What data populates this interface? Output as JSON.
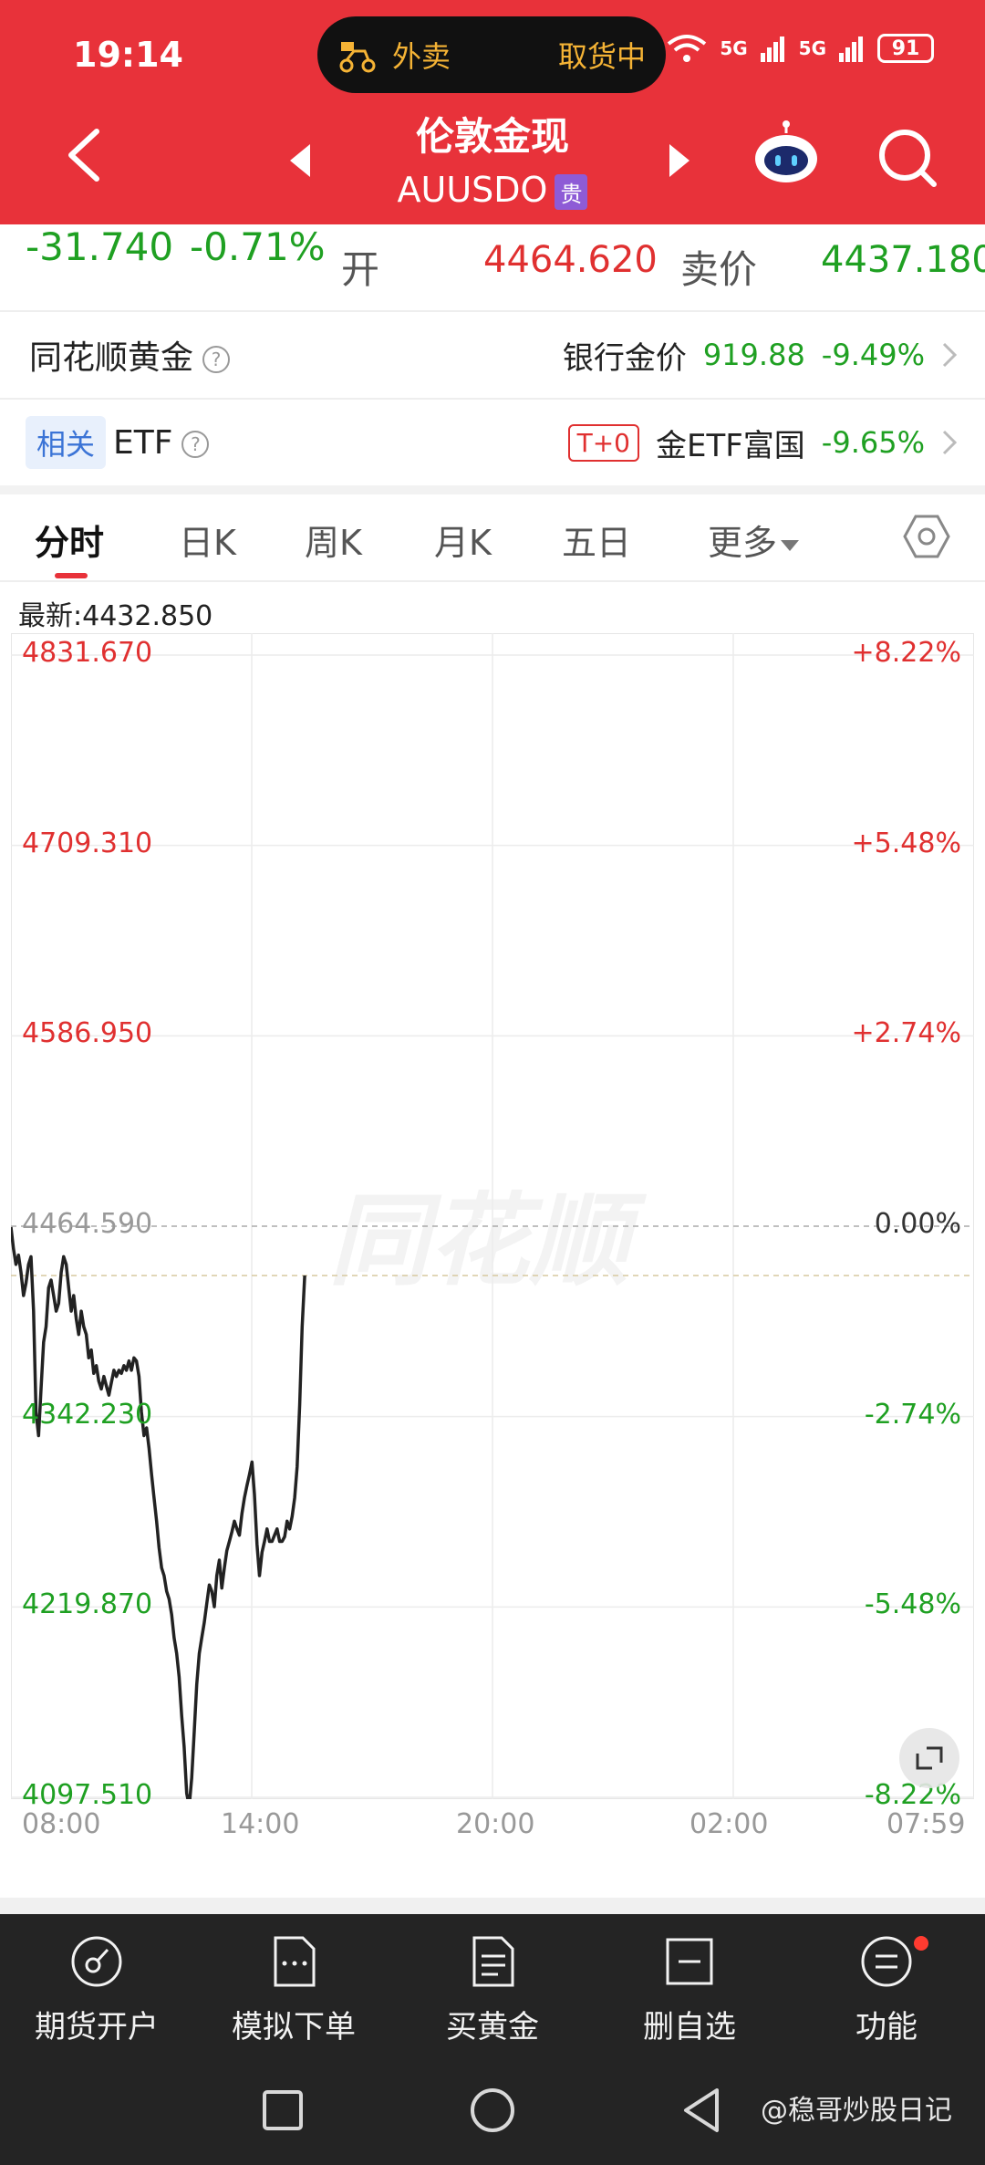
{
  "status_bar": {
    "time": "19:14",
    "pill_left": "外卖",
    "pill_right": "取货中",
    "signal1": "5G",
    "signal2": "5G",
    "battery": "91"
  },
  "header": {
    "title": "伦敦金现",
    "symbol": "AUUSDO",
    "symbol_badge": "贵"
  },
  "quote": {
    "change": "-31.740",
    "change_pct": "-0.71%",
    "open_label": "开",
    "open_value": "4464.620",
    "sell_label": "卖价",
    "sell_value": "4437.180"
  },
  "gold_row": {
    "label": "同花顺黄金",
    "help": "?",
    "bank_label": "银行金价",
    "bank_value": "919.88",
    "bank_pct": "-9.49%"
  },
  "etf_row": {
    "tag": "相关",
    "label": "ETF",
    "help": "?",
    "t0_tag": "T+0",
    "etf_name": "金ETF富国",
    "etf_pct": "-9.65%"
  },
  "tabs": [
    {
      "label": "分时"
    },
    {
      "label": "日K"
    },
    {
      "label": "周K"
    },
    {
      "label": "月K"
    },
    {
      "label": "五日"
    },
    {
      "label": "更多"
    }
  ],
  "latest_label": "最新:4432.850",
  "watermark": "同花顺",
  "chart_data": {
    "type": "line",
    "title": "",
    "xlabel": "",
    "ylabel": "",
    "y_ticks": [
      "4831.670",
      "4709.310",
      "4586.950",
      "4464.590",
      "4342.230",
      "4219.870",
      "4097.510"
    ],
    "pct_ticks": [
      "+8.22%",
      "+5.48%",
      "+2.74%",
      "0.00%",
      "-2.74%",
      "-5.48%",
      "-8.22%"
    ],
    "x_ticks": [
      "08:00",
      "14:00",
      "20:00",
      "02:00",
      "07:59"
    ],
    "ylim": [
      4097.51,
      4831.67
    ],
    "prev_close": 4464.59,
    "latest": 4432.85,
    "grid": true,
    "series": [
      {
        "values": [
          4464,
          4450,
          4440,
          4446,
          4435,
          4420,
          4428,
          4440,
          4445,
          4410,
          4345,
          4330,
          4360,
          4390,
          4400,
          4425,
          4430,
          4420,
          4410,
          4415,
          4435,
          4445,
          4440,
          4425,
          4410,
          4420,
          4405,
          4395,
          4410,
          4400,
          4395,
          4380,
          4385,
          4370,
          4375,
          4365,
          4360,
          4368,
          4362,
          4356,
          4364,
          4372,
          4368,
          4372,
          4370,
          4375,
          4372,
          4378,
          4372,
          4380,
          4378,
          4368,
          4345,
          4330,
          4335,
          4322,
          4305,
          4290,
          4275,
          4258,
          4245,
          4240,
          4230,
          4225,
          4215,
          4200,
          4190,
          4175,
          4150,
          4130,
          4100,
          4092,
          4110,
          4140,
          4170,
          4190,
          4200,
          4210,
          4222,
          4234,
          4230,
          4220,
          4240,
          4250,
          4232,
          4245,
          4256,
          4262,
          4268,
          4275,
          4270,
          4266,
          4280,
          4290,
          4298,
          4305,
          4313,
          4292,
          4260,
          4240,
          4255,
          4262,
          4270,
          4262,
          4262,
          4266,
          4270,
          4262,
          4262,
          4265,
          4275,
          4270,
          4278,
          4290,
          4310,
          4350,
          4400,
          4432.85
        ]
      }
    ]
  },
  "bottom_bar": {
    "items": [
      {
        "label": "期货开户"
      },
      {
        "label": "模拟下单"
      },
      {
        "label": "买黄金"
      },
      {
        "label": "删自选"
      },
      {
        "label": "功能"
      }
    ]
  },
  "credit": "@稳哥炒股日记"
}
